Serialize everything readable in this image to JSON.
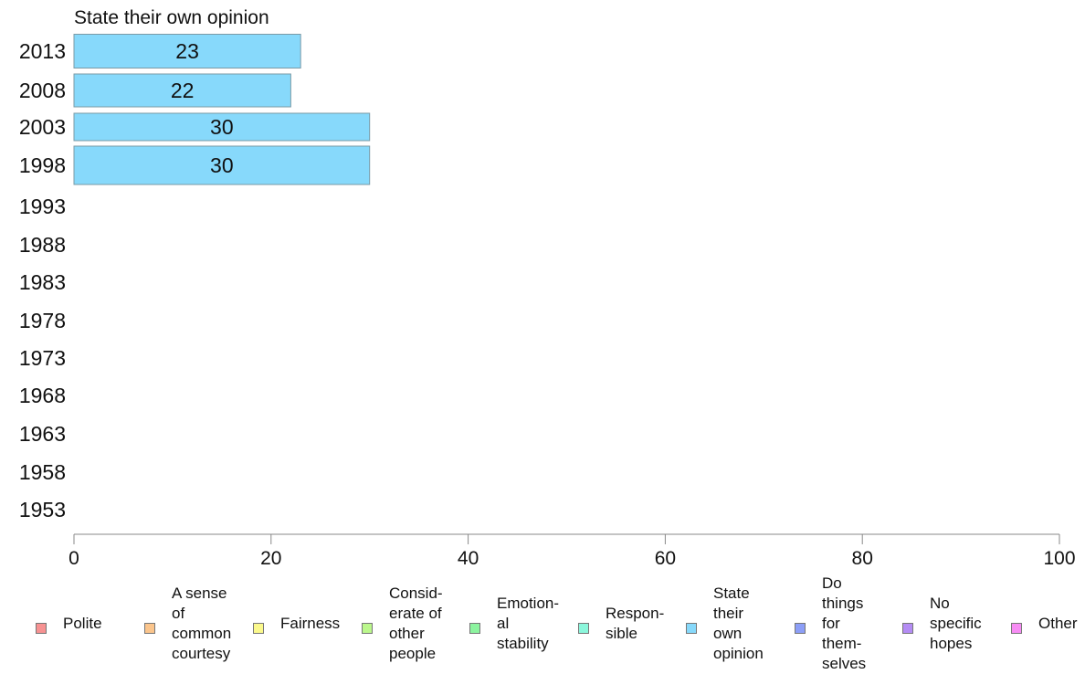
{
  "chart_data": {
    "type": "bar",
    "orientation": "horizontal",
    "title": "State their own opinion",
    "categories": [
      "2013",
      "2008",
      "2003",
      "1998",
      "1993",
      "1988",
      "1983",
      "1978",
      "1973",
      "1968",
      "1963",
      "1958",
      "1953"
    ],
    "series": [
      {
        "name": "State their own opinion",
        "values": [
          23,
          22,
          30,
          30,
          null,
          null,
          null,
          null,
          null,
          null,
          null,
          null,
          null
        ]
      }
    ],
    "data_labels": [
      "23",
      "22",
      "30",
      "30"
    ],
    "xlim": [
      0,
      100
    ],
    "xticks": [
      "0",
      "20",
      "40",
      "60",
      "80",
      "100"
    ],
    "grid": false,
    "bar_color": "#87d9fb",
    "bar_stroke": "#7a9aa6",
    "legend_position": "bottom",
    "legend": [
      {
        "label": "Polite",
        "color": "#f79292"
      },
      {
        "label": "A sense\nof\ncommon\ncourtesy",
        "color": "#fbc58c"
      },
      {
        "label": "Fairness",
        "color": "#fbf98c"
      },
      {
        "label": "Consid-\nerate of\nother\npeople",
        "color": "#bbf78c"
      },
      {
        "label": "Emotion-\nal\nstability",
        "color": "#8cf49f"
      },
      {
        "label": "Respon-\nsible",
        "color": "#8cf7dc"
      },
      {
        "label": "State\ntheir\nown\nopinion",
        "color": "#87d9fb"
      },
      {
        "label": "Do\nthings\nfor\nthem-\nselves",
        "color": "#8c9ef7"
      },
      {
        "label": "No\nspecific\nhopes",
        "color": "#b48cf4"
      },
      {
        "label": "Other",
        "color": "#f78cf4"
      }
    ]
  }
}
